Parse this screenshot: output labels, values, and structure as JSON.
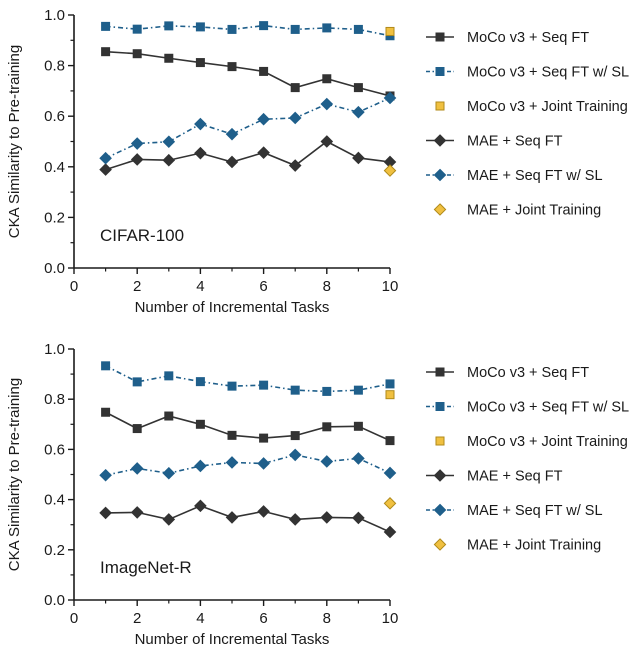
{
  "colors": {
    "moco_ft": "#333333",
    "moco_sl": "#1f5f8b",
    "joint": "#f0c040",
    "joint_stroke": "#b08a1a",
    "mae_ft": "#333333",
    "mae_sl": "#1f5f8b"
  },
  "chart_data": [
    {
      "type": "line",
      "panel_label": "CIFAR-100",
      "xlabel": "Number of Incremental Tasks",
      "ylabel": "CKA Similarity to Pre-training",
      "xlim": [
        0,
        10
      ],
      "ylim": [
        0.0,
        1.0
      ],
      "x_ticks": [
        "0",
        "2",
        "4",
        "6",
        "8",
        "10"
      ],
      "y_ticks": [
        "0.0",
        "0.2",
        "0.4",
        "0.6",
        "0.8",
        "1.0"
      ],
      "legend_position": "right",
      "series": [
        {
          "name": "MoCo v3 + Seq FT",
          "marker": "square",
          "style": "solid",
          "color_key": "moco_ft",
          "x": [
            1,
            2,
            3,
            4,
            5,
            6,
            7,
            8,
            9,
            10
          ],
          "values": [
            0.855,
            0.847,
            0.829,
            0.812,
            0.796,
            0.777,
            0.713,
            0.748,
            0.713,
            0.68
          ]
        },
        {
          "name": "MoCo v3 + Seq FT w/ SL",
          "marker": "square",
          "style": "dashdot",
          "color_key": "moco_sl",
          "x": [
            1,
            2,
            3,
            4,
            5,
            6,
            7,
            8,
            9,
            10
          ],
          "values": [
            0.955,
            0.944,
            0.957,
            0.953,
            0.943,
            0.958,
            0.943,
            0.949,
            0.943,
            0.918
          ]
        },
        {
          "name": "MoCo v3 + Joint Training",
          "marker": "square",
          "style": "none",
          "color_key": "joint",
          "x": [
            10
          ],
          "values": [
            0.935
          ]
        },
        {
          "name": "MAE + Seq FT",
          "marker": "diamond",
          "style": "solid",
          "color_key": "mae_ft",
          "x": [
            1,
            2,
            3,
            4,
            5,
            6,
            7,
            8,
            9,
            10
          ],
          "values": [
            0.389,
            0.429,
            0.426,
            0.454,
            0.419,
            0.456,
            0.405,
            0.5,
            0.435,
            0.419
          ]
        },
        {
          "name": "MAE + Seq FT w/ SL",
          "marker": "diamond",
          "style": "dashdot",
          "color_key": "mae_sl",
          "x": [
            1,
            2,
            3,
            4,
            5,
            6,
            7,
            8,
            9,
            10
          ],
          "values": [
            0.434,
            0.492,
            0.499,
            0.569,
            0.529,
            0.588,
            0.593,
            0.648,
            0.616,
            0.672
          ]
        },
        {
          "name": "MAE + Joint Training",
          "marker": "diamond",
          "style": "none",
          "color_key": "joint",
          "x": [
            10
          ],
          "values": [
            0.385
          ]
        }
      ]
    },
    {
      "type": "line",
      "panel_label": "ImageNet-R",
      "xlabel": "Number of Incremental Tasks",
      "ylabel": "CKA Similarity to Pre-training",
      "xlim": [
        0,
        10
      ],
      "ylim": [
        0.0,
        1.0
      ],
      "x_ticks": [
        "0",
        "2",
        "4",
        "6",
        "8",
        "10"
      ],
      "y_ticks": [
        "0.0",
        "0.2",
        "0.4",
        "0.6",
        "0.8",
        "1.0"
      ],
      "legend_position": "right",
      "series": [
        {
          "name": "MoCo v3 + Seq FT",
          "marker": "square",
          "style": "solid",
          "color_key": "moco_ft",
          "x": [
            1,
            2,
            3,
            4,
            5,
            6,
            7,
            8,
            9,
            10
          ],
          "values": [
            0.748,
            0.683,
            0.733,
            0.7,
            0.656,
            0.645,
            0.655,
            0.69,
            0.692,
            0.635
          ]
        },
        {
          "name": "MoCo v3 + Seq FT w/ SL",
          "marker": "square",
          "style": "dashdot",
          "color_key": "moco_sl",
          "x": [
            1,
            2,
            3,
            4,
            5,
            6,
            7,
            8,
            9,
            10
          ],
          "values": [
            0.933,
            0.869,
            0.893,
            0.87,
            0.852,
            0.856,
            0.836,
            0.831,
            0.836,
            0.861
          ]
        },
        {
          "name": "MoCo v3 + Joint Training",
          "marker": "square",
          "style": "none",
          "color_key": "joint",
          "x": [
            10
          ],
          "values": [
            0.818
          ]
        },
        {
          "name": "MAE + Seq FT",
          "marker": "diamond",
          "style": "solid",
          "color_key": "mae_ft",
          "x": [
            1,
            2,
            3,
            4,
            5,
            6,
            7,
            8,
            9,
            10
          ],
          "values": [
            0.347,
            0.349,
            0.321,
            0.375,
            0.329,
            0.353,
            0.321,
            0.329,
            0.327,
            0.271
          ]
        },
        {
          "name": "MAE + Seq FT w/ SL",
          "marker": "diamond",
          "style": "dashdot",
          "color_key": "mae_sl",
          "x": [
            1,
            2,
            3,
            4,
            5,
            6,
            7,
            8,
            9,
            10
          ],
          "values": [
            0.497,
            0.524,
            0.505,
            0.534,
            0.548,
            0.544,
            0.578,
            0.552,
            0.564,
            0.506
          ]
        },
        {
          "name": "MAE + Joint Training",
          "marker": "diamond",
          "style": "none",
          "color_key": "joint",
          "x": [
            10
          ],
          "values": [
            0.385
          ]
        }
      ]
    }
  ]
}
